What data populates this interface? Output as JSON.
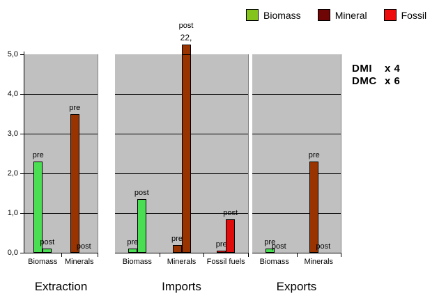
{
  "legend": {
    "position": "top-right",
    "items": [
      {
        "label": "Biomass",
        "color": "#85C41C"
      },
      {
        "label": "Mineral",
        "color": "#6F0505"
      },
      {
        "label": "Fossil",
        "color": "#EE0C0C"
      }
    ]
  },
  "annotation": {
    "rows": [
      {
        "label": "DMI",
        "value": "x 4"
      },
      {
        "label": "DMC",
        "value": "x 6"
      }
    ]
  },
  "chart_data": {
    "type": "bar",
    "title": "",
    "xlabel": "",
    "ylabel": "",
    "ylim": [
      0,
      5
    ],
    "ytick_labels": [
      "0,0",
      "1,0",
      "2,0",
      "3,0",
      "4,0",
      "5,0"
    ],
    "grid": true,
    "plot_bg": "#C0C0C0",
    "series_colors": {
      "biomass": "#4ADE52",
      "mineral": "#993300",
      "fossil": "#E00D0D"
    },
    "panels": [
      {
        "title": "Extraction",
        "categories": [
          "Biomass",
          "Minerals"
        ],
        "color_keys": [
          "biomass",
          "mineral"
        ],
        "series": [
          {
            "name": "pre",
            "values": [
              2.3,
              3.5
            ]
          },
          {
            "name": "post",
            "values": [
              0.1,
              0
            ]
          }
        ]
      },
      {
        "title": "Imports",
        "categories": [
          "Biomass",
          "Minerals",
          "Fossil fuels"
        ],
        "color_keys": [
          "biomass",
          "mineral",
          "fossil"
        ],
        "series": [
          {
            "name": "pre",
            "values": [
              0.1,
              0.2,
              0.05
            ]
          },
          {
            "name": "post",
            "values": [
              1.35,
              22,
              0.85
            ]
          }
        ],
        "clipped": {
          "series": "post",
          "category": "Minerals",
          "display_label": "22,"
        }
      },
      {
        "title": "Exports",
        "categories": [
          "Biomass",
          "Minerals"
        ],
        "color_keys": [
          "biomass",
          "mineral"
        ],
        "series": [
          {
            "name": "pre",
            "values": [
              0.1,
              2.3
            ]
          },
          {
            "name": "post",
            "values": [
              0,
              0
            ]
          }
        ]
      }
    ]
  }
}
